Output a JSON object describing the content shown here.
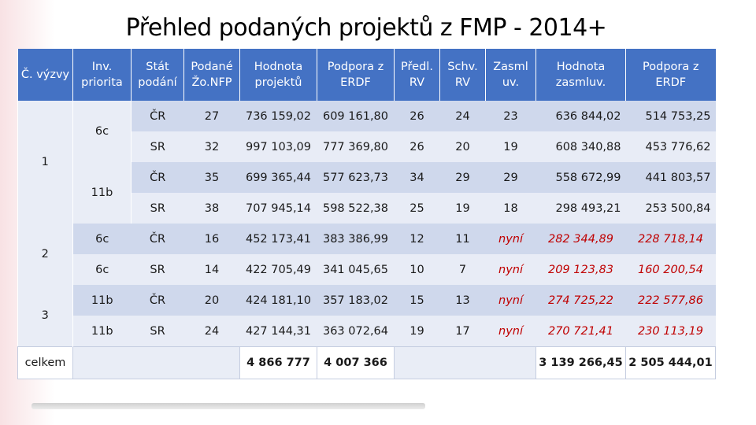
{
  "title": "Přehled podaných projektů z FMP - 2014+",
  "headers": [
    "Č. výzvy",
    "Inv. priorita",
    "Stát podání",
    "Podané Žo.NFP",
    "Hodnota projektů",
    "Podpora z ERDF",
    "Předl. RV",
    "Schv. RV",
    "Zasml uv.",
    "Hodnota zasmluv.",
    "Podpora z ERDF"
  ],
  "groups": {
    "vyzva_1": "1",
    "vyzva_2": "2",
    "vyzva_3": "3",
    "priority_6c": "6c",
    "priority_11b": "11b"
  },
  "rows": [
    {
      "priorita": "",
      "stat": "ČR",
      "podane": "27",
      "hodnota": "736 159,02",
      "podpora": "609 161,80",
      "predl": "26",
      "schv": "24",
      "zasml": "23",
      "hodnota_z": "636 844,02",
      "podpora_z": "514 753,25"
    },
    {
      "priorita": "",
      "stat": "SR",
      "podane": "32",
      "hodnota": "997 103,09",
      "podpora": "777 369,80",
      "predl": "26",
      "schv": "20",
      "zasml": "19",
      "hodnota_z": "608 340,88",
      "podpora_z": "453 776,62"
    },
    {
      "priorita": "",
      "stat": "ČR",
      "podane": "35",
      "hodnota": "699 365,44",
      "podpora": "577 623,73",
      "predl": "34",
      "schv": "29",
      "zasml": "29",
      "hodnota_z": "558 672,99",
      "podpora_z": "441 803,57"
    },
    {
      "priorita": "",
      "stat": "SR",
      "podane": "38",
      "hodnota": "707 945,14",
      "podpora": "598 522,38",
      "predl": "25",
      "schv": "19",
      "zasml": "18",
      "hodnota_z": "298 493,21",
      "podpora_z": "253 500,84"
    },
    {
      "priorita": "6c",
      "stat": "ČR",
      "podane": "16",
      "hodnota": "452 173,41",
      "podpora": "383 386,99",
      "predl": "12",
      "schv": "11",
      "zasml": "nyní",
      "hodnota_z": "282 344,89",
      "podpora_z": "228 718,14"
    },
    {
      "priorita": "6c",
      "stat": "SR",
      "podane": "14",
      "hodnota": "422 705,49",
      "podpora": "341 045,65",
      "predl": "10",
      "schv": "7",
      "zasml": "nyní",
      "hodnota_z": "209 123,83",
      "podpora_z": "160 200,54"
    },
    {
      "priorita": "11b",
      "stat": "ČR",
      "podane": "20",
      "hodnota": "424 181,10",
      "podpora": "357 183,02",
      "predl": "15",
      "schv": "13",
      "zasml": "nyní",
      "hodnota_z": "274 725,22",
      "podpora_z": "222 577,86"
    },
    {
      "priorita": "11b",
      "stat": "SR",
      "podane": "24",
      "hodnota": "427 144,31",
      "podpora": "363 072,64",
      "predl": "19",
      "schv": "17",
      "zasml": "nyní",
      "hodnota_z": "270 721,41",
      "podpora_z": "230 113,19"
    }
  ],
  "total": {
    "label": "celkem",
    "hodnota": "4 866 777",
    "podpora": "4 007 366",
    "hodnota_z": "3 139 266,45",
    "podpora_z": "2 505 444,01"
  },
  "colors": {
    "header": "#4472c4",
    "row_dark": "#cfd8ec",
    "row_light": "#e8ecf6",
    "italic_red": "#c00000"
  }
}
